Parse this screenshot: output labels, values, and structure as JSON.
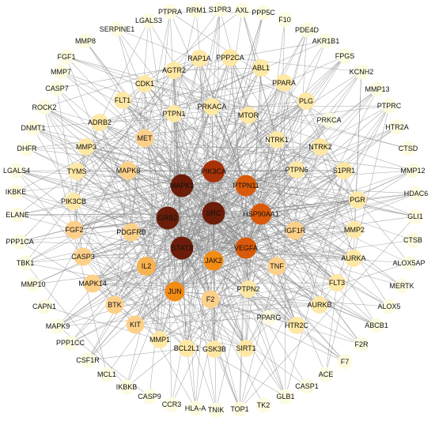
{
  "network": {
    "colors": {
      "edge": "#8c8c8c",
      "level_1": "#fdfbe0",
      "level_2": "#fde8a6",
      "level_3": "#fdd08a",
      "level_4": "#f8b24f",
      "level_5": "#f28c14",
      "level_6": "#d9590a",
      "level_7": "#a83208",
      "level_8": "#6b1d0a"
    },
    "nodes": [
      {
        "id": "PTPRA",
        "label": "PTPRA",
        "level": 1
      },
      {
        "id": "RRM1",
        "label": "RRM1",
        "level": 1
      },
      {
        "id": "S1PR3",
        "label": "S1PR3",
        "level": 1
      },
      {
        "id": "AXL",
        "label": "AXL",
        "level": 1
      },
      {
        "id": "PPP5C",
        "label": "PPP5C",
        "level": 1
      },
      {
        "id": "LGALS3",
        "label": "LGALS3",
        "level": 1
      },
      {
        "id": "F10",
        "label": "F10",
        "level": 1
      },
      {
        "id": "SERPINE1",
        "label": "SERPINE1",
        "level": 1
      },
      {
        "id": "PDE4D",
        "label": "PDE4D",
        "level": 1
      },
      {
        "id": "MMP8",
        "label": "MMP8",
        "level": 1
      },
      {
        "id": "AKR1B1",
        "label": "AKR1B1",
        "level": 1
      },
      {
        "id": "FGF1",
        "label": "FGF1",
        "level": 1
      },
      {
        "id": "FPGS",
        "label": "FPGS",
        "level": 1
      },
      {
        "id": "MMP7",
        "label": "MMP7",
        "level": 1
      },
      {
        "id": "KCNH2",
        "label": "KCNH2",
        "level": 1
      },
      {
        "id": "CASP7",
        "label": "CASP7",
        "level": 1
      },
      {
        "id": "MMP13",
        "label": "MMP13",
        "level": 1
      },
      {
        "id": "ROCK2",
        "label": "ROCK2",
        "level": 1
      },
      {
        "id": "PTPRC",
        "label": "PTPRC",
        "level": 1
      },
      {
        "id": "DNMT1",
        "label": "DNMT1",
        "level": 1
      },
      {
        "id": "HTR2A",
        "label": "HTR2A",
        "level": 1
      },
      {
        "id": "DHFR",
        "label": "DHFR",
        "level": 1
      },
      {
        "id": "CTSD",
        "label": "CTSD",
        "level": 1
      },
      {
        "id": "LGALS4",
        "label": "LGALS4",
        "level": 1
      },
      {
        "id": "MMP12",
        "label": "MMP12",
        "level": 1
      },
      {
        "id": "IKBKE",
        "label": "IKBKE",
        "level": 1
      },
      {
        "id": "HDAC6",
        "label": "HDAC6",
        "level": 1
      },
      {
        "id": "ELANE",
        "label": "ELANE",
        "level": 1
      },
      {
        "id": "GLI1",
        "label": "GLI1",
        "level": 1
      },
      {
        "id": "PPP1CA",
        "label": "PPP1CA",
        "level": 1
      },
      {
        "id": "CTSB",
        "label": "CTSB",
        "level": 1
      },
      {
        "id": "TBK1",
        "label": "TBK1",
        "level": 1
      },
      {
        "id": "ALOX5AP",
        "label": "ALOX5AP",
        "level": 1
      },
      {
        "id": "MMP10",
        "label": "MMP10",
        "level": 1
      },
      {
        "id": "MERTK",
        "label": "MERTK",
        "level": 1
      },
      {
        "id": "CAPN1",
        "label": "CAPN1",
        "level": 1
      },
      {
        "id": "ALOX5",
        "label": "ALOX5",
        "level": 1
      },
      {
        "id": "MAPK9",
        "label": "MAPK9",
        "level": 1
      },
      {
        "id": "ABCB1",
        "label": "ABCB1",
        "level": 1
      },
      {
        "id": "PPP1CC",
        "label": "PPP1CC",
        "level": 1
      },
      {
        "id": "F2R",
        "label": "F2R",
        "level": 1
      },
      {
        "id": "CSF1R",
        "label": "CSF1R",
        "level": 1
      },
      {
        "id": "F7",
        "label": "F7",
        "level": 1
      },
      {
        "id": "MCL1",
        "label": "MCL1",
        "level": 1
      },
      {
        "id": "ACE",
        "label": "ACE",
        "level": 1
      },
      {
        "id": "IKBKB",
        "label": "IKBKB",
        "level": 1
      },
      {
        "id": "CASP1",
        "label": "CASP1",
        "level": 1
      },
      {
        "id": "CASP9",
        "label": "CASP9",
        "level": 1
      },
      {
        "id": "GLB1",
        "label": "GLB1",
        "level": 1
      },
      {
        "id": "CCR3",
        "label": "CCR3",
        "level": 1
      },
      {
        "id": "HLA-A",
        "label": "HLA-A",
        "level": 1
      },
      {
        "id": "TNIK",
        "label": "TNIK",
        "level": 1
      },
      {
        "id": "TOP1",
        "label": "TOP1",
        "level": 1
      },
      {
        "id": "TK2",
        "label": "TK2",
        "level": 1
      },
      {
        "id": "PRKCA",
        "label": "PRKCA",
        "level": 1
      },
      {
        "id": "PPARG",
        "label": "PPARG",
        "level": 1
      },
      {
        "id": "RAP1A",
        "label": "RAP1A",
        "level": 2
      },
      {
        "id": "PPP2CA",
        "label": "PPP2CA",
        "level": 2
      },
      {
        "id": "AGTR2",
        "label": "AGTR2",
        "level": 2
      },
      {
        "id": "ABL1",
        "label": "ABL1",
        "level": 2
      },
      {
        "id": "CDK1",
        "label": "CDK1",
        "level": 2
      },
      {
        "id": "PPARA",
        "label": "PPARA",
        "level": 2
      },
      {
        "id": "FLT1",
        "label": "FLT1",
        "level": 2
      },
      {
        "id": "PLG",
        "label": "PLG",
        "level": 2
      },
      {
        "id": "ADRB2",
        "label": "ADRB2",
        "level": 2
      },
      {
        "id": "PRKACA",
        "label": "PRKACA",
        "level": 2
      },
      {
        "id": "PTPN1",
        "label": "PTPN1",
        "level": 2
      },
      {
        "id": "MTOR",
        "label": "MTOR",
        "level": 2
      },
      {
        "id": "NTRK2",
        "label": "NTRK2",
        "level": 2
      },
      {
        "id": "MMP3",
        "label": "MMP3",
        "level": 2
      },
      {
        "id": "MET",
        "label": "MET",
        "level": 3
      },
      {
        "id": "NTRK1",
        "label": "NTRK1",
        "level": 2
      },
      {
        "id": "S1PR1",
        "label": "S1PR1",
        "level": 2
      },
      {
        "id": "TYMS",
        "label": "TYMS",
        "level": 2
      },
      {
        "id": "MAPK8",
        "label": "MAPK8",
        "level": 3
      },
      {
        "id": "PTPN6",
        "label": "PTPN6",
        "level": 2
      },
      {
        "id": "PIK3CB",
        "label": "PIK3CB",
        "level": 2
      },
      {
        "id": "PGR",
        "label": "PGR",
        "level": 2
      },
      {
        "id": "FGF2",
        "label": "FGF2",
        "level": 3
      },
      {
        "id": "PDGFRB",
        "label": "PDGFRB",
        "level": 3
      },
      {
        "id": "IGF1R",
        "label": "IGF1R",
        "level": 3
      },
      {
        "id": "MMP2",
        "label": "MMP2",
        "level": 2
      },
      {
        "id": "CASP3",
        "label": "CASP3",
        "level": 3
      },
      {
        "id": "AURKA",
        "label": "AURKA",
        "level": 2
      },
      {
        "id": "IL2",
        "label": "IL2",
        "level": 4
      },
      {
        "id": "TNF",
        "label": "TNF",
        "level": 3
      },
      {
        "id": "MAPK14",
        "label": "MAPK14",
        "level": 3
      },
      {
        "id": "FLT3",
        "label": "FLT3",
        "level": 2
      },
      {
        "id": "JUN",
        "label": "JUN",
        "level": 5
      },
      {
        "id": "PTPN2",
        "label": "PTPN2",
        "level": 2
      },
      {
        "id": "BTK",
        "label": "BTK",
        "level": 3
      },
      {
        "id": "F2",
        "label": "F2",
        "level": 3
      },
      {
        "id": "AURKB",
        "label": "AURKB",
        "level": 2
      },
      {
        "id": "KIT",
        "label": "KIT",
        "level": 3
      },
      {
        "id": "HTR2C",
        "label": "HTR2C",
        "level": 2
      },
      {
        "id": "MMP1",
        "label": "MMP1",
        "level": 2
      },
      {
        "id": "BCL2L1",
        "label": "BCL2L1",
        "level": 2
      },
      {
        "id": "GSK3B",
        "label": "GSK3B",
        "level": 2
      },
      {
        "id": "SIRT1",
        "label": "SIRT1",
        "level": 2
      },
      {
        "id": "MAPK1",
        "label": "MAPK1",
        "level": 8
      },
      {
        "id": "PIK3CA",
        "label": "PIK3CA",
        "level": 7
      },
      {
        "id": "PTPN11",
        "label": "PTPN11",
        "level": 6
      },
      {
        "id": "GRB2",
        "label": "GRB2",
        "level": 8
      },
      {
        "id": "SRC",
        "label": "SRC",
        "level": 8
      },
      {
        "id": "HSP90AA1",
        "label": "HSP90AA1",
        "level": 6
      },
      {
        "id": "STAT3",
        "label": "STAT3",
        "level": 8
      },
      {
        "id": "JAK2",
        "label": "JAK2",
        "level": 5
      },
      {
        "id": "VEGFA",
        "label": "VEGFA",
        "level": 6
      }
    ]
  }
}
